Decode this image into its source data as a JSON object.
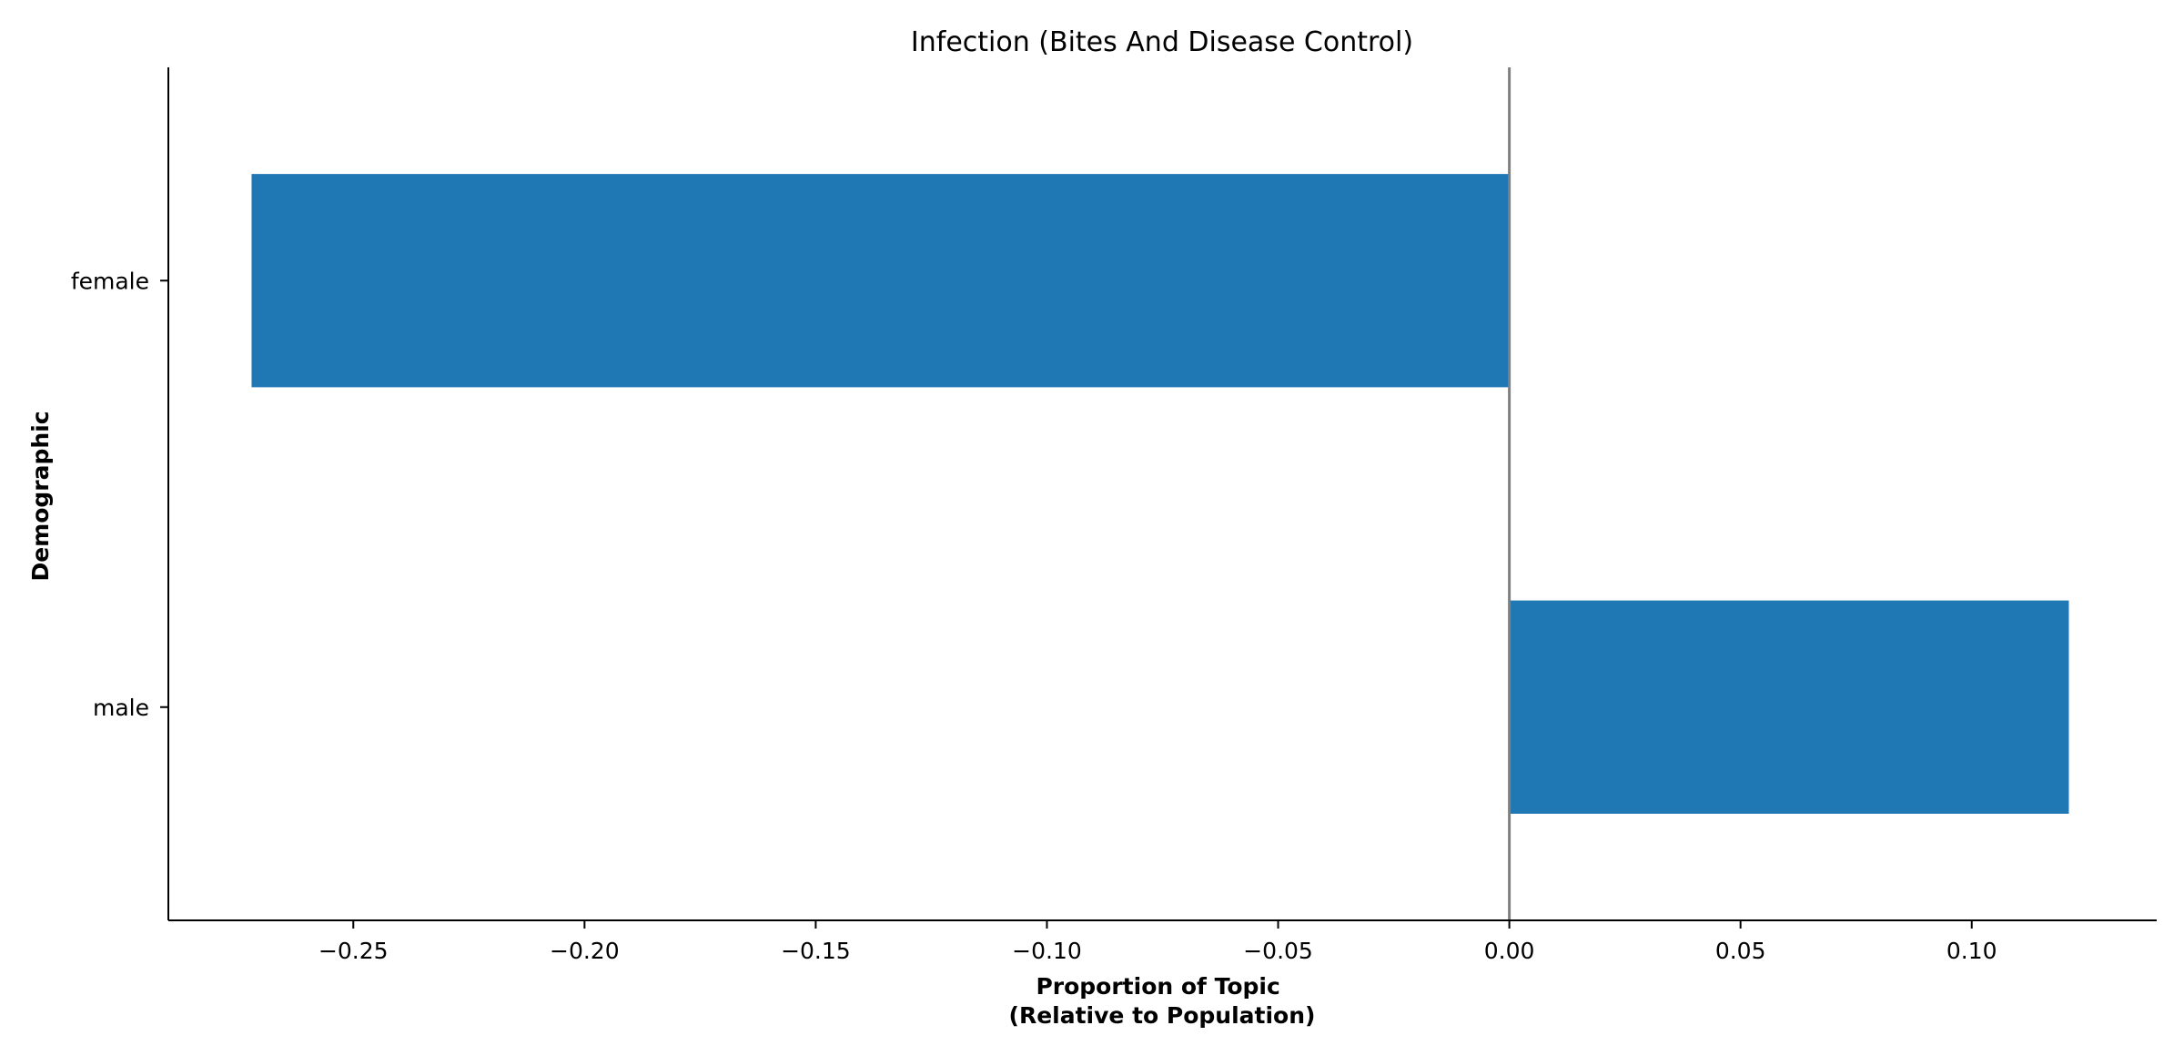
{
  "chart_data": {
    "type": "bar",
    "orientation": "horizontal",
    "title": "Infection (Bites And Disease Control)",
    "xlabel_lines": [
      "Proportion of Topic",
      "(Relative to Population)"
    ],
    "ylabel": "Demographic",
    "categories": [
      "female",
      "male"
    ],
    "values": [
      -0.272,
      0.121
    ],
    "xlim": [
      -0.29,
      0.14
    ],
    "xticks": [
      -0.25,
      -0.2,
      -0.15,
      -0.1,
      -0.05,
      0.0,
      0.05,
      0.1
    ],
    "xtick_labels": [
      "−0.25",
      "−0.20",
      "−0.15",
      "−0.10",
      "−0.05",
      "0.00",
      "0.05",
      "0.10"
    ],
    "zero_line": true,
    "grid": false,
    "bar_color": "#1f77b4",
    "zero_line_color": "#808080"
  }
}
